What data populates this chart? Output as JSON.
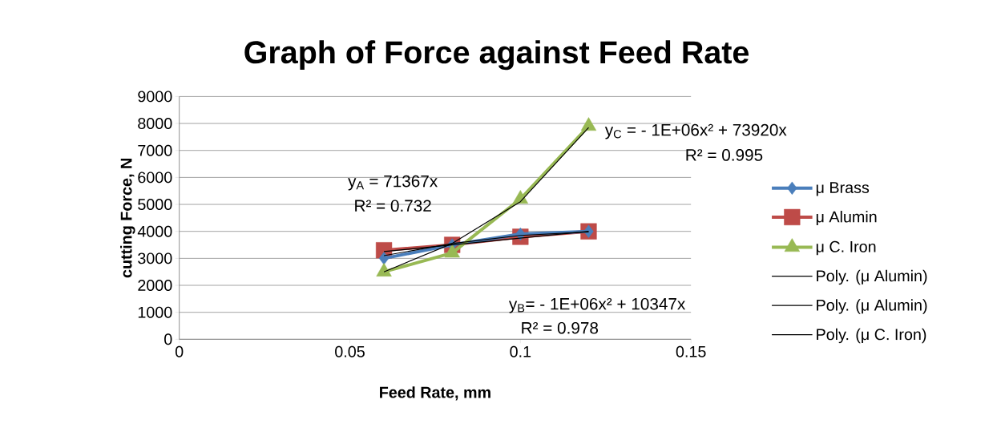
{
  "chart_data": {
    "type": "line",
    "title": "Graph of Force against Feed Rate",
    "xlabel": "Feed Rate, mm",
    "ylabel": "cutting Force, N",
    "xlim": [
      0,
      0.15
    ],
    "xticks": [
      0,
      0.05,
      0.1,
      0.15
    ],
    "ylim": [
      0,
      9000
    ],
    "yticks": [
      0,
      1000,
      2000,
      3000,
      4000,
      5000,
      6000,
      7000,
      8000,
      9000
    ],
    "grid": "y",
    "legend": "right",
    "series": [
      {
        "name": "μ Brass",
        "color": "#4a7ebb",
        "marker": "diamond",
        "x": [
          0.06,
          0.08,
          0.1,
          0.12
        ],
        "values": [
          3000,
          3500,
          3900,
          4000
        ]
      },
      {
        "name": "μ Alumin",
        "color": "#be4b48",
        "marker": "square",
        "x": [
          0.06,
          0.08,
          0.1,
          0.12
        ],
        "values": [
          3300,
          3500,
          3800,
          4000
        ]
      },
      {
        "name": "μ C. Iron",
        "color": "#98b954",
        "marker": "triangle",
        "x": [
          0.06,
          0.08,
          0.1,
          0.12
        ],
        "values": [
          2500,
          3200,
          5200,
          7900
        ]
      },
      {
        "name": "Poly. (μ Alumin)",
        "color": "#000000",
        "marker": "none",
        "x": [
          0.06,
          0.08,
          0.1,
          0.12
        ],
        "values": [
          3100,
          3550,
          3850,
          3980
        ]
      },
      {
        "name": "Poly. (μ Alumin)",
        "color": "#000000",
        "marker": "none",
        "x": [
          0.06,
          0.08,
          0.1,
          0.12
        ],
        "values": [
          3250,
          3500,
          3750,
          4000
        ]
      },
      {
        "name": "Poly. (μ C. Iron)",
        "color": "#000000",
        "marker": "none",
        "x": [
          0.06,
          0.08,
          0.1,
          0.12
        ],
        "values": [
          2500,
          3550,
          5100,
          7850
        ]
      }
    ],
    "annotations": [
      "y$_{A}$ = 71367x",
      "R² = 0.732",
      "y$_{C}$ =  - 1E+06x² + 73920x",
      "R² = 0.995",
      "y$_{B}$=  - 1E+06x² + 10347x",
      "R² = 0.978"
    ]
  }
}
